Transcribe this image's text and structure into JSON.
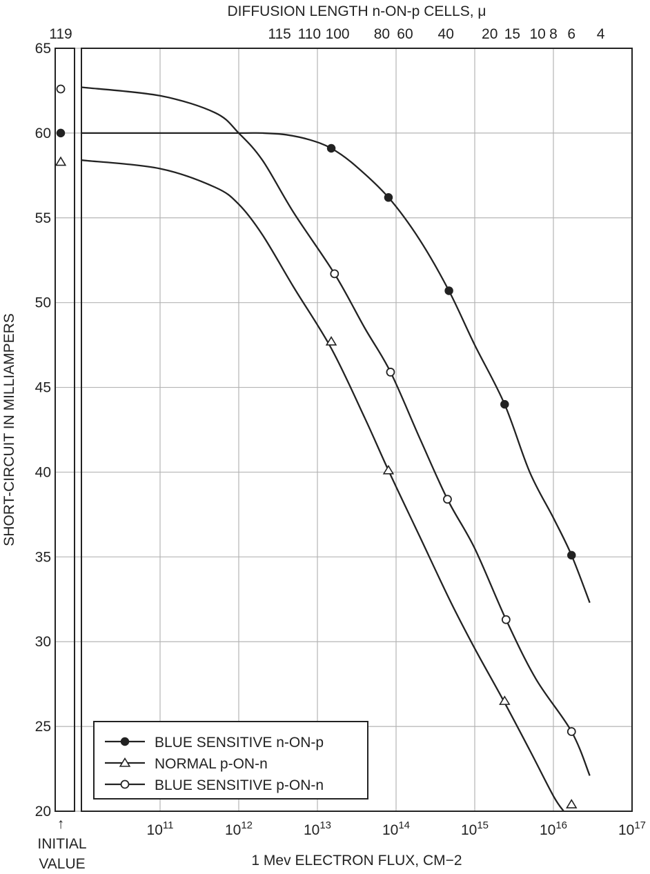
{
  "chart_data": {
    "type": "line",
    "x_scale": "log",
    "xlabel": "1 Mev ELECTRON FLUX, CM−2",
    "x2label": "DIFFUSION LENGTH n-ON-p CELLS, μ",
    "ylabel": "SHORT-CIRCUIT IN MILLIAMPERS",
    "initial_label_lines": [
      "INITIAL",
      "VALUE"
    ],
    "initial_arrow": "↑",
    "xlim": [
      10000000000.0,
      1e+17
    ],
    "ylim": [
      20,
      65
    ],
    "grid": true,
    "y_ticks": [
      20,
      25,
      30,
      35,
      40,
      45,
      50,
      55,
      60,
      65
    ],
    "x_ticks": [
      {
        "value": 100000000000.0,
        "base": "10",
        "exp": "11"
      },
      {
        "value": 1000000000000.0,
        "base": "10",
        "exp": "12"
      },
      {
        "value": 10000000000000.0,
        "base": "10",
        "exp": "13"
      },
      {
        "value": 100000000000000.0,
        "base": "10",
        "exp": "14"
      },
      {
        "value": 1000000000000000.0,
        "base": "10",
        "exp": "15"
      },
      {
        "value": 1e+16,
        "base": "10",
        "exp": "16"
      },
      {
        "value": 1e+17,
        "base": "10",
        "exp": "17"
      }
    ],
    "top_ticks": [
      {
        "label": "115",
        "flux": 3300000000000.0
      },
      {
        "label": "110",
        "flux": 7900000000000.0
      },
      {
        "label": "100",
        "flux": 18000000000000.0
      },
      {
        "label": "80",
        "flux": 66000000000000.0
      },
      {
        "label": "60",
        "flux": 130000000000000.0
      },
      {
        "label": "40",
        "flux": 430000000000000.0
      },
      {
        "label": "20",
        "flux": 1550000000000000.0
      },
      {
        "label": "15",
        "flux": 3000000000000000.0
      },
      {
        "label": "10",
        "flux": 6300000000000000.0
      },
      {
        "label": "8",
        "flux": 1e+16
      },
      {
        "label": "6",
        "flux": 1.7e+16
      },
      {
        "label": "4",
        "flux": 4e+16
      }
    ],
    "initial_tick_label": "119",
    "series": [
      {
        "name": "BLUE SENSITIVE n-ON-p",
        "marker": "filled-circle",
        "initial_value": 60.0,
        "curve": [
          [
            10000000000.0,
            60.0
          ],
          [
            100000000000.0,
            60.0
          ],
          [
            1000000000000.0,
            60.0
          ],
          [
            2000000000000.0,
            60.0
          ],
          [
            4000000000000.0,
            59.9
          ],
          [
            8000000000000.0,
            59.6
          ],
          [
            15000000000000.0,
            59.1
          ],
          [
            30000000000000.0,
            58.1
          ],
          [
            80000000000000.0,
            56.2
          ],
          [
            200000000000000.0,
            53.7
          ],
          [
            470000000000000.0,
            50.7
          ],
          [
            1000000000000000.0,
            47.5
          ],
          [
            2400000000000000.0,
            44.0
          ],
          [
            5000000000000000.0,
            40.0
          ],
          [
            1e+16,
            37.3
          ],
          [
            1.7e+16,
            35.1
          ],
          [
            2.9e+16,
            32.3
          ]
        ],
        "points": [
          [
            15000000000000.0,
            59.1
          ],
          [
            80000000000000.0,
            56.2
          ],
          [
            470000000000000.0,
            50.7
          ],
          [
            2400000000000000.0,
            44.0
          ],
          [
            1.7e+16,
            35.1
          ]
        ]
      },
      {
        "name": "NORMAL p-ON-n",
        "marker": "open-triangle",
        "initial_value": 58.3,
        "curve": [
          [
            10000000000.0,
            58.4
          ],
          [
            100000000000.0,
            57.9
          ],
          [
            500000000000.0,
            56.8
          ],
          [
            1000000000000.0,
            55.8
          ],
          [
            2000000000000.0,
            54.0
          ],
          [
            5000000000000.0,
            50.9
          ],
          [
            15000000000000.0,
            47.3
          ],
          [
            40000000000000.0,
            43.2
          ],
          [
            80000000000000.0,
            40.1
          ],
          [
            200000000000000.0,
            36.2
          ],
          [
            500000000000000.0,
            32.3
          ],
          [
            1000000000000000.0,
            29.6
          ],
          [
            2400000000000000.0,
            26.4
          ],
          [
            5000000000000000.0,
            23.6
          ],
          [
            1e+16,
            20.9
          ],
          [
            1.35e+16,
            20.0
          ]
        ],
        "points": [
          [
            15000000000000.0,
            47.7
          ],
          [
            80000000000000.0,
            40.1
          ],
          [
            2400000000000000.0,
            26.5
          ],
          [
            1.7e+16,
            20.4
          ]
        ]
      },
      {
        "name": "BLUE SENSITIVE p-ON-n",
        "marker": "open-circle",
        "initial_value": 62.6,
        "curve": [
          [
            10000000000.0,
            62.7
          ],
          [
            100000000000.0,
            62.2
          ],
          [
            500000000000.0,
            61.2
          ],
          [
            1000000000000.0,
            60.0
          ],
          [
            2000000000000.0,
            58.4
          ],
          [
            5000000000000.0,
            55.3
          ],
          [
            16500000000000.0,
            51.7
          ],
          [
            40000000000000.0,
            48.5
          ],
          [
            85000000000000.0,
            45.9
          ],
          [
            200000000000000.0,
            42.0
          ],
          [
            450000000000000.0,
            38.4
          ],
          [
            1000000000000000.0,
            35.5
          ],
          [
            2500000000000000.0,
            31.3
          ],
          [
            6000000000000000.0,
            27.8
          ],
          [
            1.7e+16,
            24.7
          ],
          [
            2.9e+16,
            22.1
          ]
        ],
        "points": [
          [
            16500000000000.0,
            51.7
          ],
          [
            85000000000000.0,
            45.9
          ],
          [
            450000000000000.0,
            38.4
          ],
          [
            2500000000000000.0,
            31.3
          ],
          [
            1.7e+16,
            24.7
          ]
        ]
      }
    ]
  }
}
